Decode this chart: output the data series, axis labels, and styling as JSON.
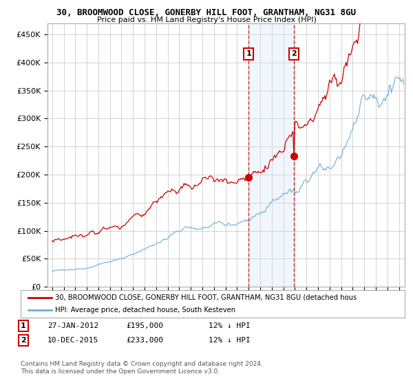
{
  "title": "30, BROOMWOOD CLOSE, GONERBY HILL FOOT, GRANTHAM, NG31 8GU",
  "subtitle": "Price paid vs. HM Land Registry's House Price Index (HPI)",
  "hpi_color": "#6baed6",
  "price_color": "#cc0000",
  "marker1_price": 195000,
  "marker1_date_str": "27-JAN-2012",
  "marker2_price": 233000,
  "marker2_date_str": "10-DEC-2015",
  "legend_line1": "30, BROOMWOOD CLOSE, GONERBY HILL FOOT, GRANTHAM, NG31 8GU (detached hous",
  "legend_line2": "HPI: Average price, detached house, South Kesteven",
  "footer": "Contains HM Land Registry data © Crown copyright and database right 2024.\nThis data is licensed under the Open Government Licence v3.0.",
  "ytick_labels": [
    "£0",
    "£50K",
    "£100K",
    "£150K",
    "£200K",
    "£250K",
    "£300K",
    "£350K",
    "£400K",
    "£450K"
  ],
  "yticks": [
    0,
    50000,
    100000,
    150000,
    200000,
    250000,
    300000,
    350000,
    400000,
    450000
  ],
  "ylim": [
    0,
    470000
  ],
  "background_color": "#ffffff",
  "grid_color": "#cccccc",
  "shade_color": "#ddeeff"
}
